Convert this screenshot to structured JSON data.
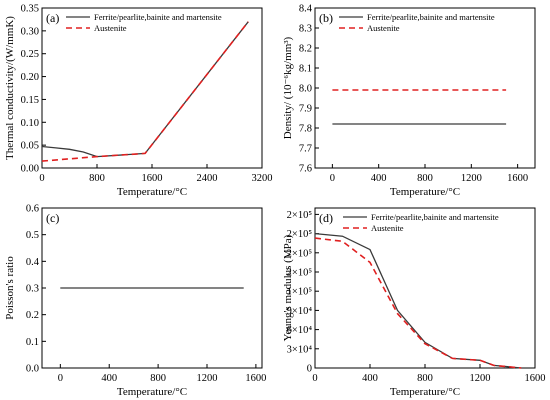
{
  "colors": {
    "ferrite": "#3a3a3a",
    "austenite": "#e02020"
  },
  "chart_data": [
    {
      "type": "line",
      "panel_label": "(a)",
      "xlabel": "Temperature/°C",
      "ylabel": "Thermal conductivity/(W/mmK)",
      "xlim": [
        0,
        3200
      ],
      "ylim": [
        0,
        0.35
      ],
      "xticks": [
        0,
        800,
        1600,
        2400,
        3200
      ],
      "xtick_labels": [
        "0",
        "800",
        "1600",
        "2400",
        "3200"
      ],
      "yticks": [
        0,
        0.05,
        0.1,
        0.15,
        0.2,
        0.25,
        0.3,
        0.35
      ],
      "ytick_labels": [
        "0.00",
        "0.05",
        "0.10",
        "0.15",
        "0.20",
        "0.25",
        "0.30",
        "0.35"
      ],
      "legend": "top-left",
      "series": [
        {
          "name": "Ferrite/pearlite,bainite and martensite",
          "style": "solid",
          "color": "#3a3a3a",
          "x": [
            0,
            200,
            400,
            600,
            800,
            1500,
            3000
          ],
          "y": [
            0.047,
            0.044,
            0.041,
            0.035,
            0.025,
            0.032,
            0.32
          ]
        },
        {
          "name": "Austenite",
          "style": "dashed",
          "color": "#e02020",
          "x": [
            0,
            800,
            1500,
            3000
          ],
          "y": [
            0.015,
            0.025,
            0.032,
            0.32
          ]
        }
      ]
    },
    {
      "type": "line",
      "panel_label": "(b)",
      "xlabel": "Temperature/°C",
      "ylabel": "Density/ (10⁻⁶kg/mm³)",
      "xlim": [
        -150,
        1750
      ],
      "ylim": [
        7.6,
        8.4
      ],
      "xticks": [
        0,
        400,
        800,
        1200,
        1600
      ],
      "xtick_labels": [
        "0",
        "400",
        "800",
        "1200",
        "1600"
      ],
      "yticks": [
        7.6,
        7.7,
        7.8,
        7.9,
        8.0,
        8.1,
        8.2,
        8.3,
        8.4
      ],
      "ytick_labels": [
        "7.6",
        "7.7",
        "7.8",
        "7.9",
        "8.0",
        "8.1",
        "8.2",
        "8.3",
        "8.4"
      ],
      "legend": "top-left",
      "series": [
        {
          "name": "Ferrite/pearlite,bainite and martensite",
          "style": "solid",
          "color": "#3a3a3a",
          "x": [
            0,
            1500
          ],
          "y": [
            7.82,
            7.82
          ]
        },
        {
          "name": "Austenite",
          "style": "dashed",
          "color": "#e02020",
          "x": [
            0,
            1500
          ],
          "y": [
            7.99,
            7.99
          ]
        }
      ]
    },
    {
      "type": "line",
      "panel_label": "(c)",
      "xlabel": "Temperature/°C",
      "ylabel": "Poisson's ratio",
      "xlim": [
        -150,
        1650
      ],
      "ylim": [
        0,
        0.6
      ],
      "xticks": [
        0,
        400,
        800,
        1200,
        1600
      ],
      "xtick_labels": [
        "0",
        "400",
        "800",
        "1200",
        "1600"
      ],
      "yticks": [
        0,
        0.1,
        0.2,
        0.3,
        0.4,
        0.5,
        0.6
      ],
      "ytick_labels": [
        "0.0",
        "0.1",
        "0.2",
        "0.3",
        "0.4",
        "0.5",
        "0.6"
      ],
      "legend": "none",
      "series": [
        {
          "name": "",
          "style": "solid",
          "color": "#3a3a3a",
          "x": [
            0,
            1500
          ],
          "y": [
            0.3,
            0.3
          ]
        }
      ]
    },
    {
      "type": "line",
      "panel_label": "(d)",
      "xlabel": "Temperature/°C",
      "ylabel": "Young's modulus (MPa)",
      "xlim": [
        0,
        1600
      ],
      "ylim": [
        0,
        250000
      ],
      "xticks": [
        0,
        400,
        800,
        1200,
        1600
      ],
      "xtick_labels": [
        "0",
        "400",
        "800",
        "1200",
        "1600"
      ],
      "yticks": [
        0,
        30000,
        60000,
        90000,
        120000,
        150000,
        180000,
        210000,
        240000
      ],
      "ytick_labels": [
        "0",
        "3×10⁴",
        "6×10⁴",
        "9×10⁴",
        "1×10⁵",
        "2×10⁵",
        "2×10⁵",
        "2×10⁵",
        "2×10⁵"
      ],
      "legend": "top-right",
      "series": [
        {
          "name": "Ferrite/pearlite,bainite and martensite",
          "style": "solid",
          "color": "#3a3a3a",
          "x": [
            0,
            200,
            400,
            600,
            800,
            1000,
            1200,
            1300,
            1500
          ],
          "y": [
            210000,
            206000,
            185000,
            90000,
            40000,
            15000,
            12000,
            4000,
            0
          ]
        },
        {
          "name": "Austenite",
          "style": "dashed",
          "color": "#e02020",
          "x": [
            0,
            200,
            400,
            600,
            800,
            1000,
            1200,
            1300,
            1500
          ],
          "y": [
            203000,
            198000,
            165000,
            85000,
            38000,
            15000,
            12000,
            4000,
            0
          ]
        }
      ]
    }
  ]
}
